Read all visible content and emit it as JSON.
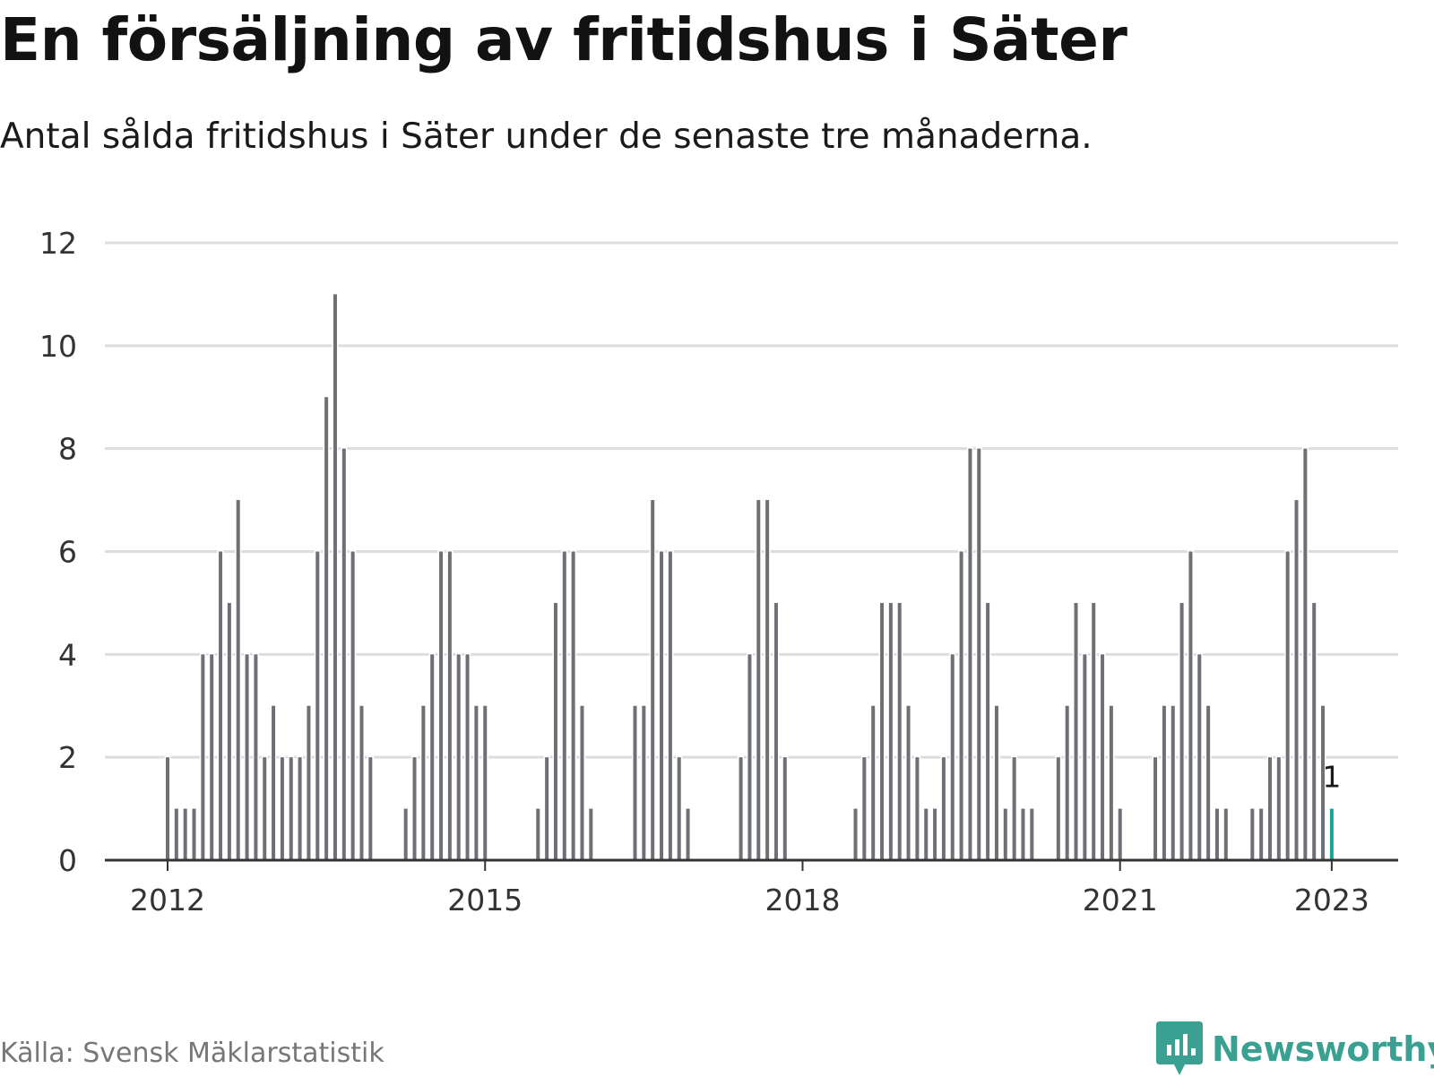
{
  "title": "En försäljning av fritidshus i Säter",
  "subtitle": "Antal sålda fritidshus i Säter under de senaste tre månaderna.",
  "source": "Källa: Svensk Mäklarstatistik",
  "brand": {
    "name": "Newsworthy",
    "icon": "newsworthy-logo-icon"
  },
  "colors": {
    "bar": "#6f6f75",
    "highlight": "#19a395",
    "grid": "#dddddd",
    "axis": "#333333",
    "brand": "#3aa192"
  },
  "chart_data": {
    "type": "bar",
    "x_label_values": [
      "2012",
      "2015",
      "2018",
      "2021",
      "2023"
    ],
    "y_ticks": [
      0,
      2,
      4,
      6,
      8,
      10,
      12
    ],
    "ylim": [
      0,
      12
    ],
    "grid": true,
    "categories": [
      "2012-01",
      "2012-02",
      "2012-03",
      "2012-04",
      "2012-05",
      "2012-06",
      "2012-07",
      "2012-08",
      "2012-09",
      "2012-10",
      "2012-11",
      "2012-12",
      "2013-01",
      "2013-02",
      "2013-03",
      "2013-04",
      "2013-05",
      "2013-06",
      "2013-07",
      "2013-08",
      "2013-09",
      "2013-10",
      "2013-11",
      "2013-12",
      "2014-01",
      "2014-02",
      "2014-03",
      "2014-04",
      "2014-05",
      "2014-06",
      "2014-07",
      "2014-08",
      "2014-09",
      "2014-10",
      "2014-11",
      "2014-12",
      "2015-01",
      "2015-02",
      "2015-03",
      "2015-04",
      "2015-05",
      "2015-06",
      "2015-07",
      "2015-08",
      "2015-09",
      "2015-10",
      "2015-11",
      "2015-12",
      "2016-01",
      "2016-02",
      "2016-03",
      "2016-04",
      "2016-05",
      "2016-06",
      "2016-07",
      "2016-08",
      "2016-09",
      "2016-10",
      "2016-11",
      "2016-12",
      "2017-01",
      "2017-02",
      "2017-03",
      "2017-04",
      "2017-05",
      "2017-06",
      "2017-07",
      "2017-08",
      "2017-09",
      "2017-10",
      "2017-11",
      "2017-12",
      "2018-01",
      "2018-02",
      "2018-03",
      "2018-04",
      "2018-05",
      "2018-06",
      "2018-07",
      "2018-08",
      "2018-09",
      "2018-10",
      "2018-11",
      "2018-12",
      "2019-01",
      "2019-02",
      "2019-03",
      "2019-04",
      "2019-05",
      "2019-06",
      "2019-07",
      "2019-08",
      "2019-09",
      "2019-10",
      "2019-11",
      "2019-12",
      "2020-01",
      "2020-02",
      "2020-03",
      "2020-04",
      "2020-05",
      "2020-06",
      "2020-07",
      "2020-08",
      "2020-09",
      "2020-10",
      "2020-11",
      "2020-12",
      "2021-01",
      "2021-02",
      "2021-03",
      "2021-04",
      "2021-05",
      "2021-06",
      "2021-07",
      "2021-08",
      "2021-09",
      "2021-10",
      "2021-11",
      "2021-12",
      "2022-01",
      "2022-02",
      "2022-03",
      "2022-04",
      "2022-05",
      "2022-06",
      "2022-07",
      "2022-08",
      "2022-09",
      "2022-10",
      "2022-11",
      "2022-12",
      "2023-01"
    ],
    "values": [
      2,
      1,
      1,
      1,
      4,
      4,
      6,
      5,
      7,
      4,
      4,
      2,
      3,
      2,
      2,
      2,
      3,
      6,
      9,
      11,
      8,
      6,
      3,
      2,
      0,
      0,
      0,
      1,
      2,
      3,
      4,
      6,
      6,
      4,
      4,
      3,
      3,
      0,
      0,
      0,
      0,
      0,
      1,
      2,
      5,
      6,
      6,
      3,
      1,
      0,
      0,
      0,
      0,
      3,
      3,
      7,
      6,
      6,
      2,
      1,
      0,
      0,
      0,
      0,
      0,
      2,
      4,
      7,
      7,
      5,
      2,
      0,
      0,
      0,
      0,
      0,
      0,
      0,
      1,
      2,
      3,
      5,
      5,
      5,
      3,
      2,
      1,
      1,
      2,
      4,
      6,
      8,
      8,
      5,
      3,
      1,
      2,
      1,
      1,
      0,
      0,
      2,
      3,
      5,
      4,
      5,
      4,
      3,
      1,
      0,
      0,
      0,
      2,
      3,
      3,
      5,
      6,
      4,
      3,
      1,
      1,
      0,
      0,
      1,
      1,
      2,
      2,
      6,
      7,
      8,
      5,
      3,
      1
    ],
    "highlight_label": "1"
  }
}
